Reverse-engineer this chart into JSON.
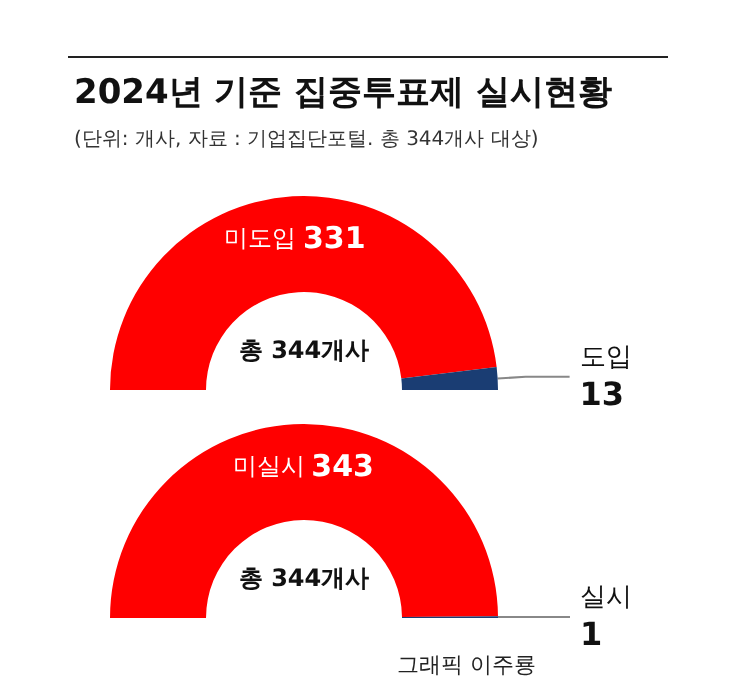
{
  "chart_data": [
    {
      "type": "donut",
      "title": "2024년 기준 집중투표제 실시현황",
      "subtitle": "(단위: 개사, 자료 : 기업집단포털. 총 344개사 대상)",
      "categories": [
        "미도입",
        "도입"
      ],
      "values": [
        331,
        13
      ],
      "colors": [
        "#ff0000",
        "#1a3d73"
      ],
      "data_labels": true,
      "annotations": [
        "총 344개사"
      ]
    },
    {
      "type": "donut",
      "categories": [
        "미실시",
        "실시"
      ],
      "values": [
        343,
        1
      ],
      "colors": [
        "#ff0000",
        "#1a3d73"
      ],
      "data_labels": true,
      "annotations": [
        "총 344개사",
        "그래픽 이주룡"
      ]
    }
  ]
}
